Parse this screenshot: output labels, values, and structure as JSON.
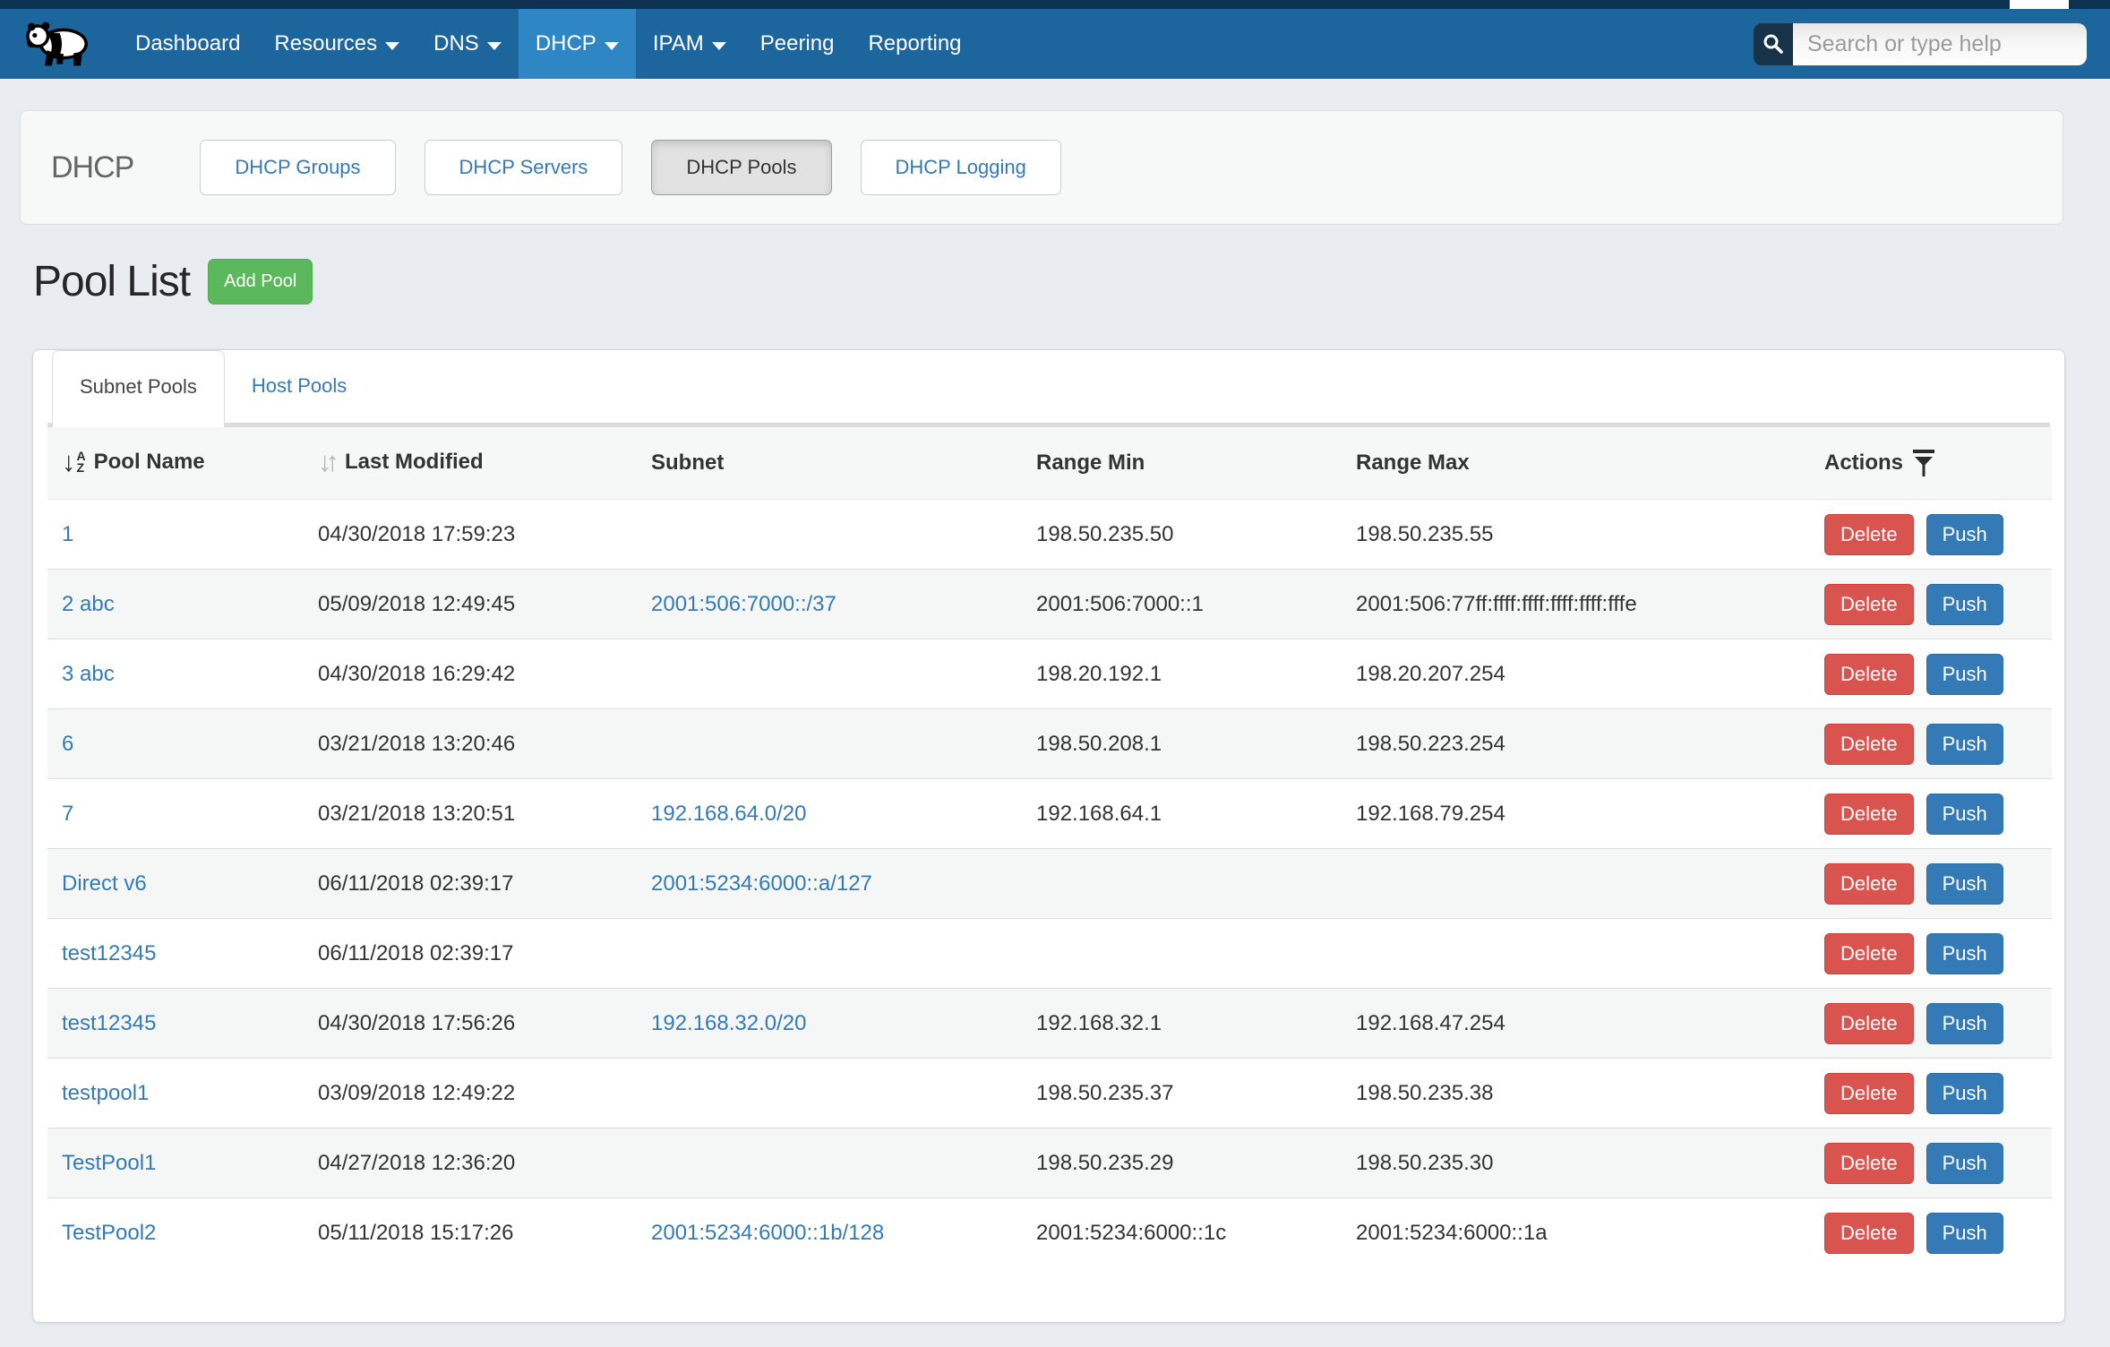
{
  "navbar": {
    "logo_icon": "panda-logo-icon",
    "items": [
      {
        "label": "Dashboard",
        "caret": false,
        "active": false
      },
      {
        "label": "Resources",
        "caret": true,
        "active": false
      },
      {
        "label": "DNS",
        "caret": true,
        "active": false
      },
      {
        "label": "DHCP",
        "caret": true,
        "active": true
      },
      {
        "label": "IPAM",
        "caret": true,
        "active": false
      },
      {
        "label": "Peering",
        "caret": false,
        "active": false
      },
      {
        "label": "Reporting",
        "caret": false,
        "active": false
      }
    ],
    "search": {
      "placeholder": "Search or type help",
      "value": "",
      "icon": "search-icon"
    }
  },
  "section_bar": {
    "title": "DHCP",
    "buttons": [
      {
        "label": "DHCP Groups",
        "active": false
      },
      {
        "label": "DHCP Servers",
        "active": false
      },
      {
        "label": "DHCP Pools",
        "active": true
      },
      {
        "label": "DHCP Logging",
        "active": false
      }
    ]
  },
  "page": {
    "title": "Pool List",
    "add_button_label": "Add Pool"
  },
  "tabs": [
    {
      "label": "Subnet Pools",
      "active": true
    },
    {
      "label": "Host Pools",
      "active": false
    }
  ],
  "table": {
    "columns": [
      {
        "label": "Pool Name",
        "icon": "sort-az-icon",
        "sortable": true
      },
      {
        "label": "Last Modified",
        "icon": "sort-updown-icon",
        "sortable": true
      },
      {
        "label": "Subnet",
        "icon": "",
        "sortable": false
      },
      {
        "label": "Range Min",
        "icon": "",
        "sortable": false
      },
      {
        "label": "Range Max",
        "icon": "",
        "sortable": false
      },
      {
        "label": "Actions",
        "icon": "filter-icon",
        "sortable": false
      }
    ],
    "action_labels": {
      "delete": "Delete",
      "push": "Push"
    },
    "rows": [
      {
        "name": "1",
        "modified": "04/30/2018 17:59:23",
        "subnet": "",
        "range_min": "198.50.235.50",
        "range_max": "198.50.235.55"
      },
      {
        "name": "2 abc",
        "modified": "05/09/2018 12:49:45",
        "subnet": "2001:506:7000::/37",
        "range_min": "2001:506:7000::1",
        "range_max": "2001:506:77ff:ffff:ffff:ffff:ffff:fffe"
      },
      {
        "name": "3 abc",
        "modified": "04/30/2018 16:29:42",
        "subnet": "",
        "range_min": "198.20.192.1",
        "range_max": "198.20.207.254"
      },
      {
        "name": "6",
        "modified": "03/21/2018 13:20:46",
        "subnet": "",
        "range_min": "198.50.208.1",
        "range_max": "198.50.223.254"
      },
      {
        "name": "7",
        "modified": "03/21/2018 13:20:51",
        "subnet": "192.168.64.0/20",
        "range_min": "192.168.64.1",
        "range_max": "192.168.79.254"
      },
      {
        "name": "Direct v6",
        "modified": "06/11/2018 02:39:17",
        "subnet": "2001:5234:6000::a/127",
        "range_min": "",
        "range_max": ""
      },
      {
        "name": "test12345",
        "modified": "06/11/2018 02:39:17",
        "subnet": "",
        "range_min": "",
        "range_max": ""
      },
      {
        "name": "test12345",
        "modified": "04/30/2018 17:56:26",
        "subnet": "192.168.32.0/20",
        "range_min": "192.168.32.1",
        "range_max": "192.168.47.254"
      },
      {
        "name": "testpool1",
        "modified": "03/09/2018 12:49:22",
        "subnet": "",
        "range_min": "198.50.235.37",
        "range_max": "198.50.235.38"
      },
      {
        "name": "TestPool1",
        "modified": "04/27/2018 12:36:20",
        "subnet": "",
        "range_min": "198.50.235.29",
        "range_max": "198.50.235.30"
      },
      {
        "name": "TestPool2",
        "modified": "05/11/2018 15:17:26",
        "subnet": "2001:5234:6000::1b/128",
        "range_min": "2001:5234:6000::1c",
        "range_max": "2001:5234:6000::1a"
      }
    ]
  },
  "colors": {
    "page_bg": "#e9edf1",
    "navbar": "#1c659d",
    "navbar_active": "#2f86c4",
    "link": "#337ab7",
    "success": "#5cb85c",
    "danger": "#d9534f",
    "primary": "#337ab7"
  }
}
